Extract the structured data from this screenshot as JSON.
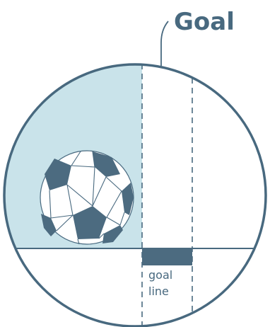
{
  "diagram": {
    "title": "Goal",
    "label_line1": "goal",
    "label_line2": "line"
  },
  "colors": {
    "stroke": "#48697f",
    "shade": "#c9e3ea",
    "ball_patch": "#4c6b80",
    "background": "#ffffff"
  }
}
